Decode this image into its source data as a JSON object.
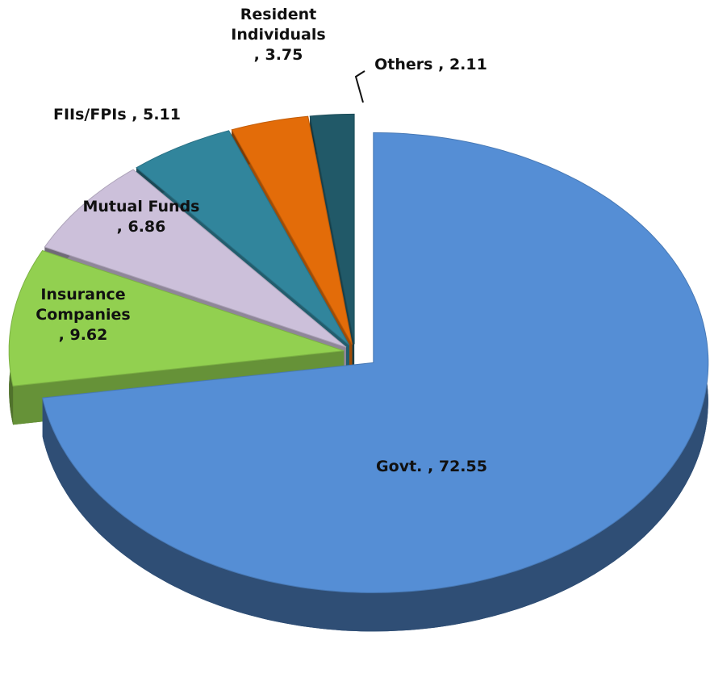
{
  "chart_data": {
    "type": "pie",
    "categories": [
      "Govt.",
      "Insurance Companies",
      "Mutual Funds",
      "FIIs/FPIs",
      "Resident Individuals",
      "Others"
    ],
    "values": [
      72.55,
      9.62,
      6.86,
      5.11,
      3.75,
      2.11
    ],
    "value_labels": [
      ", 72.55",
      ", 9.62",
      ", 6.86",
      ", 5.11",
      ", 3.75",
      ", 2.11"
    ],
    "colors": [
      "#558ed5",
      "#92d050",
      "#ccc0da",
      "#31859c",
      "#e36c09",
      "#215968"
    ]
  }
}
